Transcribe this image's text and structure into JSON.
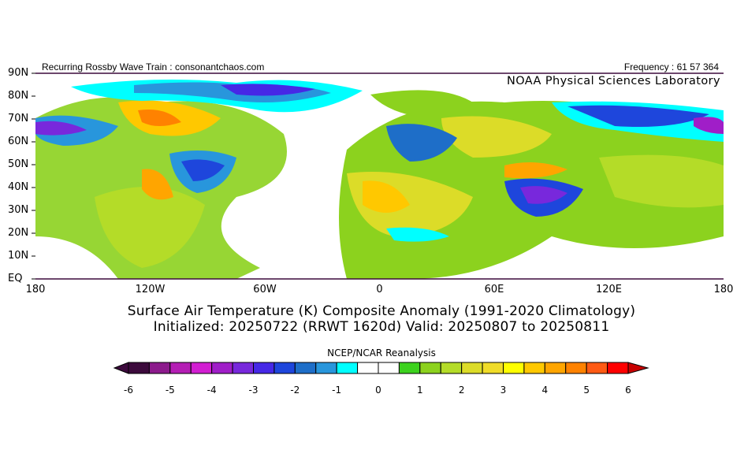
{
  "header": {
    "left_text": "Recurring Rossby Wave Train : consonantchaos.com",
    "right_text": "Frequency : 61 57 364",
    "lab": "NOAA Physical Sciences Laboratory"
  },
  "map": {
    "lat_labels": [
      "90N",
      "80N",
      "70N",
      "60N",
      "50N",
      "40N",
      "30N",
      "20N",
      "10N",
      "EQ"
    ],
    "lon_labels": [
      "180",
      "120W",
      "60W",
      "0",
      "60E",
      "120E",
      "180"
    ]
  },
  "titles": {
    "line1": "Surface Air Temperature (K) Composite Anomaly (1991-2020 Climatology)",
    "line2": "Initialized: 20250722 (RRWT 1620d) Valid: 20250807 to 20250811"
  },
  "colorbar": {
    "label": "NCEP/NCAR Reanalysis",
    "ticks": [
      "-6",
      "-5",
      "-4",
      "-3",
      "-2",
      "-1",
      "0",
      "1",
      "2",
      "3",
      "4",
      "5",
      "6"
    ],
    "range": [
      -6,
      6
    ],
    "step": 0.5,
    "colors": [
      "#3c0a3c",
      "#8c1a8c",
      "#b41eb4",
      "#d21ed2",
      "#a01ec8",
      "#7828dc",
      "#4628e6",
      "#1e46dc",
      "#1e6ec8",
      "#2896dc",
      "#00ffff",
      "#ffffff",
      "#ffffff",
      "#3cd21e",
      "#8cd21e",
      "#b4dc28",
      "#dcdc28",
      "#f0dc28",
      "#ffff00",
      "#ffc800",
      "#ffa500",
      "#ff8200",
      "#ff5a14",
      "#ff0000"
    ],
    "low_arrow_color": "#3c0a3c",
    "high_arrow_color": "#c80000"
  }
}
